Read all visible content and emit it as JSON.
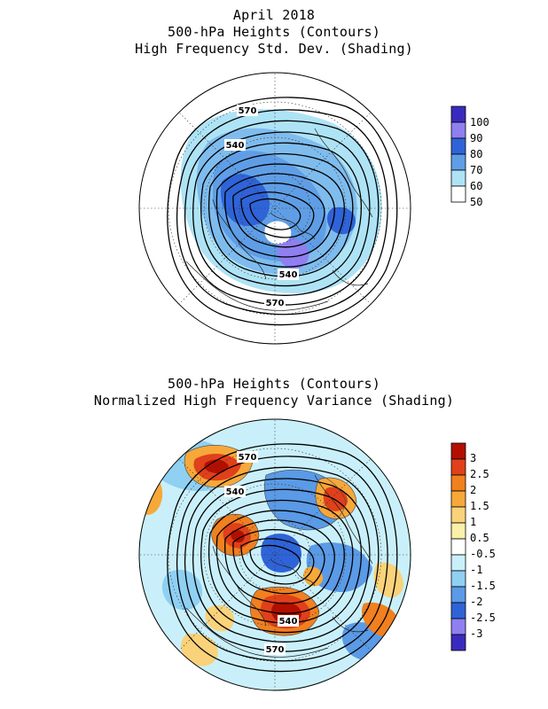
{
  "top_panel": {
    "title_lines": [
      "April 2018",
      "500-hPa Heights (Contours)",
      "High Frequency Std. Dev. (Shading)"
    ],
    "contour_labels": [
      "570",
      "540",
      "540",
      "570"
    ],
    "colorbar": {
      "labels": [
        "100",
        "90",
        "80",
        "70",
        "60",
        "50"
      ],
      "colors": [
        "#3a2bbf",
        "#8f7ff0",
        "#2f63d8",
        "#5f9ee6",
        "#aee3f6",
        "#ffffff"
      ]
    }
  },
  "bottom_panel": {
    "title_lines": [
      "500-hPa Heights (Contours)",
      "Normalized High Frequency Variance (Shading)"
    ],
    "contour_labels": [
      "570",
      "540",
      "540",
      "570"
    ],
    "colorbar": {
      "labels": [
        "3",
        "2.5",
        "2",
        "1.5",
        "1",
        "0.5",
        "-0.5",
        "-1",
        "-1.5",
        "-2",
        "-2.5",
        "-3"
      ],
      "colors": [
        "#b30f00",
        "#e0401a",
        "#f08020",
        "#f6a83a",
        "#f9d27a",
        "#fbf0a8",
        "#ffffff",
        "#c9f0fa",
        "#8fd0f3",
        "#5a9ae6",
        "#2f63d8",
        "#8f7ff0",
        "#3a2bbf"
      ]
    }
  }
}
